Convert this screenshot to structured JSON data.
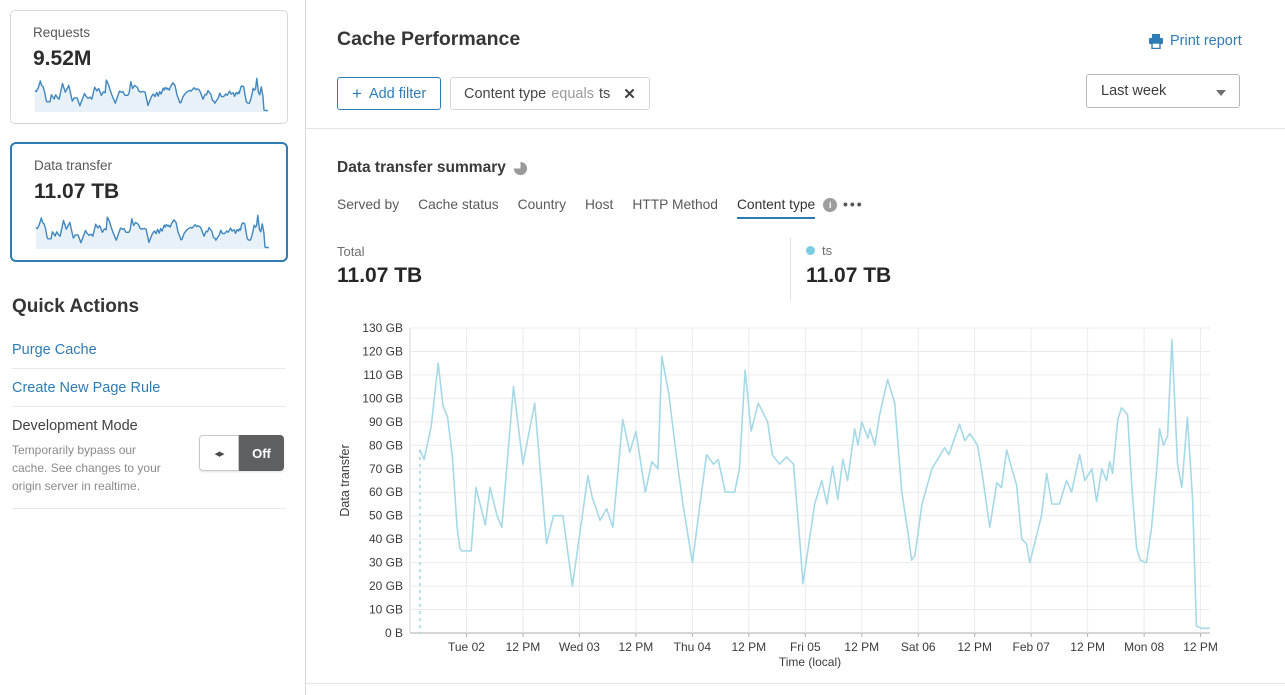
{
  "theme": {
    "accent_blue": "#2e7cb5",
    "chart_line": "#a6d9e7",
    "legend_dot": "#7dcde2",
    "sparkline_stroke": "#3f87bf",
    "sparkline_fill": "#e9f1f8",
    "toggle_off_bg": "#5d5f61"
  },
  "icons": {
    "plus": "+",
    "close": "✕",
    "toggle_arrows": "◂▸",
    "more_dots": "•••",
    "info_i": "i"
  },
  "sidebar": {
    "requests_card": {
      "title": "Requests",
      "value": "9.52M"
    },
    "data_transfer_card": {
      "title": "Data transfer",
      "value": "11.07 TB"
    },
    "quick_actions": {
      "heading": "Quick Actions",
      "purge_cache": "Purge Cache",
      "create_page_rule": "Create New Page Rule"
    },
    "development_mode": {
      "title": "Development Mode",
      "description": "Temporarily bypass our cache. See changes to your origin server in realtime.",
      "toggle_state": "Off"
    }
  },
  "header": {
    "title": "Cache Performance",
    "print_report": "Print report"
  },
  "filters": {
    "add_filter_label": "Add filter",
    "chip": {
      "field": "Content type",
      "operator": "equals",
      "value": "ts"
    },
    "time_range": "Last week"
  },
  "summary": {
    "heading": "Data transfer summary",
    "tabs": [
      {
        "label": "Served by"
      },
      {
        "label": "Cache status"
      },
      {
        "label": "Country"
      },
      {
        "label": "Host"
      },
      {
        "label": "HTTP Method"
      },
      {
        "label": "Content type",
        "has_info": true
      }
    ],
    "active_tab": "Content type",
    "total_label": "Total",
    "total_value": "11.07 TB",
    "legend": {
      "name": "ts",
      "value": "11.07 TB"
    }
  },
  "chart_data": {
    "type": "line",
    "title": "Data transfer summary",
    "xlabel": "Time (local)",
    "ylabel": "Data transfer",
    "unit": "GB",
    "y_max": 130,
    "y_tick_step": 10,
    "y_tick_labels": [
      "0 B",
      "10 GB",
      "20 GB",
      "30 GB",
      "40 GB",
      "50 GB",
      "60 GB",
      "70 GB",
      "80 GB",
      "90 GB",
      "100 GB",
      "110 GB",
      "120 GB",
      "130 GB"
    ],
    "x_range_hours": [
      0,
      170
    ],
    "x_ticks": [
      {
        "t": 12,
        "label": "Tue 02"
      },
      {
        "t": 24,
        "label": "12 PM"
      },
      {
        "t": 36,
        "label": "Wed 03"
      },
      {
        "t": 48,
        "label": "12 PM"
      },
      {
        "t": 60,
        "label": "Thu 04"
      },
      {
        "t": 72,
        "label": "12 PM"
      },
      {
        "t": 84,
        "label": "Fri 05"
      },
      {
        "t": 96,
        "label": "12 PM"
      },
      {
        "t": 108,
        "label": "Sat 06"
      },
      {
        "t": 120,
        "label": "12 PM"
      },
      {
        "t": 132,
        "label": "Feb 07"
      },
      {
        "t": 144,
        "label": "12 PM"
      },
      {
        "t": 156,
        "label": "Mon 08"
      },
      {
        "t": 168,
        "label": "12 PM"
      }
    ],
    "start_marker_dashed": true,
    "series": [
      {
        "name": "ts",
        "total": "11.07 TB",
        "points": [
          [
            2.1,
            78
          ],
          [
            3,
            74
          ],
          [
            4.5,
            88
          ],
          [
            6,
            115
          ],
          [
            7,
            97
          ],
          [
            8,
            92
          ],
          [
            9,
            75
          ],
          [
            10,
            45
          ],
          [
            10.6,
            36
          ],
          [
            11,
            35
          ],
          [
            13,
            35
          ],
          [
            14,
            62
          ],
          [
            16,
            46
          ],
          [
            17,
            62
          ],
          [
            18.5,
            50
          ],
          [
            19.5,
            45
          ],
          [
            22,
            105
          ],
          [
            24,
            72
          ],
          [
            26.5,
            98
          ],
          [
            29,
            38
          ],
          [
            30.5,
            50
          ],
          [
            32.5,
            50
          ],
          [
            34.5,
            20
          ],
          [
            37.8,
            67
          ],
          [
            38.7,
            58
          ],
          [
            40.4,
            48
          ],
          [
            41.8,
            53
          ],
          [
            43.1,
            45
          ],
          [
            45.2,
            91
          ],
          [
            46.7,
            77
          ],
          [
            48,
            86
          ],
          [
            50,
            60
          ],
          [
            51.4,
            73
          ],
          [
            52.7,
            70
          ],
          [
            53.5,
            118
          ],
          [
            55,
            102
          ],
          [
            56.5,
            77
          ],
          [
            58,
            55
          ],
          [
            60,
            30
          ],
          [
            63,
            76
          ],
          [
            64.5,
            72
          ],
          [
            65.5,
            74
          ],
          [
            67,
            60
          ],
          [
            69,
            60
          ],
          [
            70,
            70
          ],
          [
            71.2,
            112
          ],
          [
            72.5,
            86
          ],
          [
            74,
            98
          ],
          [
            76,
            90
          ],
          [
            77,
            76
          ],
          [
            78.5,
            72
          ],
          [
            80,
            75
          ],
          [
            81.5,
            72
          ],
          [
            83,
            35
          ],
          [
            83.5,
            21
          ],
          [
            86,
            55
          ],
          [
            87.5,
            65
          ],
          [
            88.6,
            55
          ],
          [
            89.8,
            71
          ],
          [
            90.9,
            57
          ],
          [
            92,
            74
          ],
          [
            93,
            65
          ],
          [
            94.5,
            87
          ],
          [
            95.2,
            80
          ],
          [
            96,
            90
          ],
          [
            97.3,
            83
          ],
          [
            97.7,
            87
          ],
          [
            98.8,
            80
          ],
          [
            99.8,
            93
          ],
          [
            101.5,
            108
          ],
          [
            103,
            98
          ],
          [
            104.5,
            60
          ],
          [
            105.8,
            43
          ],
          [
            106.6,
            31
          ],
          [
            107.3,
            33
          ],
          [
            108.8,
            55
          ],
          [
            110.9,
            70
          ],
          [
            113.6,
            79
          ],
          [
            114.5,
            76
          ],
          [
            116.8,
            89
          ],
          [
            117.9,
            82
          ],
          [
            119,
            85
          ],
          [
            120.6,
            80
          ],
          [
            121.5,
            69
          ],
          [
            123.2,
            45
          ],
          [
            124.7,
            64
          ],
          [
            125.7,
            62
          ],
          [
            126.8,
            78
          ],
          [
            127.9,
            70
          ],
          [
            128.9,
            63
          ],
          [
            130,
            40
          ],
          [
            131,
            38
          ],
          [
            131.7,
            30
          ],
          [
            134.2,
            50
          ],
          [
            135.3,
            68
          ],
          [
            136.4,
            55
          ],
          [
            138,
            55
          ],
          [
            139.5,
            65
          ],
          [
            140.6,
            60
          ],
          [
            142.3,
            76
          ],
          [
            143.4,
            65
          ],
          [
            144.9,
            70
          ],
          [
            145.9,
            56
          ],
          [
            147,
            70
          ],
          [
            148,
            65
          ],
          [
            148.7,
            73
          ],
          [
            149.3,
            68
          ],
          [
            150.4,
            91
          ],
          [
            151.2,
            96
          ],
          [
            152.5,
            93
          ],
          [
            153.4,
            62
          ],
          [
            154.4,
            36
          ],
          [
            155.2,
            31
          ],
          [
            156.5,
            30
          ],
          [
            157.6,
            45
          ],
          [
            158.7,
            70
          ],
          [
            159.3,
            87
          ],
          [
            160.1,
            80
          ],
          [
            161,
            84
          ],
          [
            161.9,
            125
          ],
          [
            163.1,
            72
          ],
          [
            164,
            62
          ],
          [
            165.2,
            92
          ],
          [
            166.3,
            57
          ],
          [
            167.1,
            3
          ],
          [
            168.2,
            2
          ],
          [
            169.9,
            2
          ]
        ]
      }
    ]
  }
}
